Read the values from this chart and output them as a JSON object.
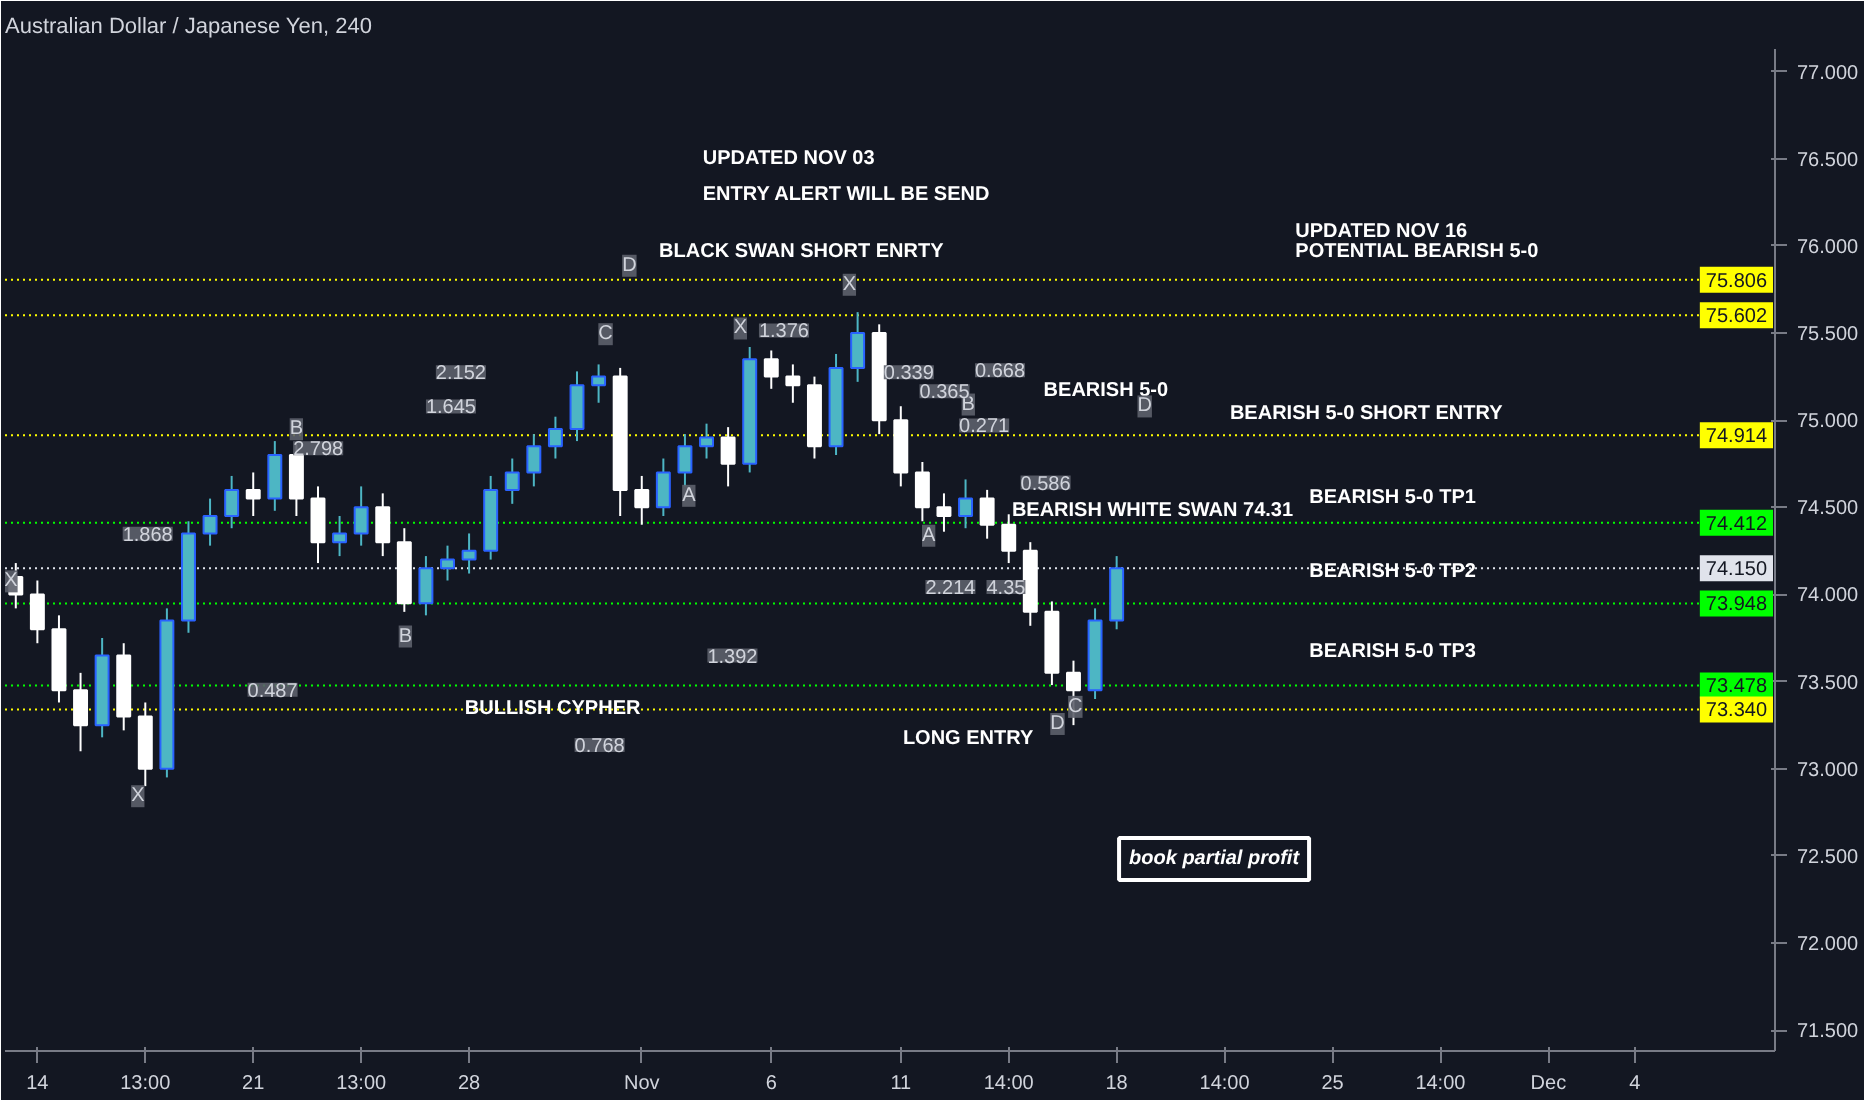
{
  "chart_data": {
    "type": "candlestick",
    "title": "Australian Dollar / Japanese Yen, 240",
    "categories": [
      null,
      "14",
      null,
      null,
      null,
      null,
      "13:00",
      null,
      null,
      null,
      null,
      "21",
      null,
      null,
      null,
      null,
      "13:00",
      null,
      null,
      null,
      null,
      "28",
      null,
      null,
      null,
      null,
      null,
      null,
      null,
      "Nov",
      null,
      null,
      null,
      null,
      null,
      "6",
      null,
      null,
      null,
      null,
      null,
      "11",
      null,
      null,
      null,
      null,
      "14:00",
      null,
      null,
      null,
      null,
      "18",
      null,
      null,
      null,
      null,
      "14:00",
      null,
      null,
      null,
      null,
      "25",
      null,
      null,
      null,
      null,
      "14:00",
      null,
      null,
      null,
      null,
      "Dec",
      null,
      null,
      null,
      "4",
      null,
      null,
      null,
      null,
      null
    ],
    "ohlc": [
      [
        74.1,
        74.18,
        73.92,
        74.0
      ],
      [
        74.0,
        74.08,
        73.72,
        73.8
      ],
      [
        73.8,
        73.88,
        73.38,
        73.45
      ],
      [
        73.45,
        73.55,
        73.1,
        73.25
      ],
      [
        73.25,
        73.75,
        73.18,
        73.65
      ],
      [
        73.65,
        73.72,
        73.22,
        73.3
      ],
      [
        73.3,
        73.38,
        72.9,
        73.0
      ],
      [
        73.0,
        73.92,
        72.95,
        73.85
      ],
      [
        73.85,
        74.42,
        73.78,
        74.35
      ],
      [
        74.35,
        74.55,
        74.28,
        74.45
      ],
      [
        74.45,
        74.68,
        74.38,
        74.6
      ],
      [
        74.6,
        74.7,
        74.45,
        74.55
      ],
      [
        74.55,
        74.88,
        74.48,
        74.8
      ],
      [
        74.8,
        74.86,
        74.45,
        74.55
      ],
      [
        74.55,
        74.62,
        74.18,
        74.3
      ],
      [
        74.3,
        74.45,
        74.22,
        74.35
      ],
      [
        74.35,
        74.62,
        74.28,
        74.5
      ],
      [
        74.5,
        74.58,
        74.22,
        74.3
      ],
      [
        74.3,
        74.38,
        73.9,
        73.95
      ],
      [
        73.95,
        74.22,
        73.88,
        74.15
      ],
      [
        74.15,
        74.28,
        74.08,
        74.2
      ],
      [
        74.2,
        74.35,
        74.12,
        74.25
      ],
      [
        74.25,
        74.68,
        74.2,
        74.6
      ],
      [
        74.6,
        74.78,
        74.52,
        74.7
      ],
      [
        74.7,
        74.92,
        74.62,
        74.85
      ],
      [
        74.85,
        75.02,
        74.78,
        74.95
      ],
      [
        74.95,
        75.28,
        74.88,
        75.2
      ],
      [
        75.2,
        75.32,
        75.1,
        75.25
      ],
      [
        75.25,
        75.3,
        74.45,
        74.6
      ],
      [
        74.6,
        74.68,
        74.4,
        74.5
      ],
      [
        74.5,
        74.78,
        74.45,
        74.7
      ],
      [
        74.7,
        74.92,
        74.62,
        74.85
      ],
      [
        74.85,
        74.98,
        74.78,
        74.9
      ],
      [
        74.9,
        74.96,
        74.62,
        74.75
      ],
      [
        74.75,
        75.42,
        74.7,
        75.35
      ],
      [
        75.35,
        75.4,
        75.18,
        75.25
      ],
      [
        75.25,
        75.32,
        75.1,
        75.2
      ],
      [
        75.2,
        75.25,
        74.78,
        74.85
      ],
      [
        74.85,
        75.38,
        74.8,
        75.3
      ],
      [
        75.3,
        75.62,
        75.22,
        75.5
      ],
      [
        75.5,
        75.55,
        74.92,
        75.0
      ],
      [
        75.0,
        75.08,
        74.62,
        74.7
      ],
      [
        74.7,
        74.76,
        74.42,
        74.5
      ],
      [
        74.5,
        74.58,
        74.36,
        74.45
      ],
      [
        74.45,
        74.66,
        74.38,
        74.55
      ],
      [
        74.55,
        74.6,
        74.32,
        74.4
      ],
      [
        74.4,
        74.46,
        74.18,
        74.25
      ],
      [
        74.25,
        74.3,
        73.82,
        73.9
      ],
      [
        73.9,
        73.96,
        73.48,
        73.55
      ],
      [
        73.55,
        73.62,
        73.25,
        73.45
      ],
      [
        73.45,
        73.92,
        73.4,
        73.85
      ],
      [
        73.85,
        74.22,
        73.8,
        74.15
      ],
      null,
      null,
      null,
      null,
      null,
      null,
      null,
      null,
      null,
      null,
      null,
      null,
      null,
      null,
      null,
      null,
      null,
      null,
      null,
      null,
      null,
      null,
      null,
      null,
      null,
      null,
      null,
      null,
      null
    ],
    "colors": [
      "#ffffff",
      "#ffffff",
      "#ffffff",
      "#ffffff",
      "#4db6c4",
      "#ffffff",
      "#ffffff",
      "#4db6c4",
      "#4db6c4",
      "#4db6c4",
      "#4db6c4",
      "#ffffff",
      "#4db6c4",
      "#ffffff",
      "#ffffff",
      "#4db6c4",
      "#4db6c4",
      "#ffffff",
      "#ffffff",
      "#4db6c4",
      "#4db6c4",
      "#4db6c4",
      "#4db6c4",
      "#4db6c4",
      "#4db6c4",
      "#4db6c4",
      "#4db6c4",
      "#4db6c4",
      "#ffffff",
      "#ffffff",
      "#4db6c4",
      "#4db6c4",
      "#4db6c4",
      "#ffffff",
      "#4db6c4",
      "#ffffff",
      "#ffffff",
      "#ffffff",
      "#4db6c4",
      "#4db6c4",
      "#ffffff",
      "#ffffff",
      "#ffffff",
      "#ffffff",
      "#4db6c4",
      "#ffffff",
      "#ffffff",
      "#ffffff",
      "#ffffff",
      "#ffffff",
      "#4db6c4",
      "#4db6c4",
      null,
      null,
      null,
      null,
      null,
      null,
      null,
      null,
      null,
      null,
      null,
      null,
      null,
      null,
      null,
      null,
      null,
      null,
      null,
      null,
      null,
      null,
      null,
      null,
      null,
      null,
      null,
      null,
      null
    ],
    "ylim": [
      71.38,
      77.13
    ],
    "yticks": [
      {
        "value": 71.5,
        "label": "71.500"
      },
      {
        "value": 72,
        "label": "72.000"
      },
      {
        "value": 72.5,
        "label": "72.500"
      },
      {
        "value": 73,
        "label": "73.000"
      },
      {
        "value": 73.5,
        "label": "73.500"
      },
      {
        "value": 74,
        "label": "74.000"
      },
      {
        "value": 74.5,
        "label": "74.500"
      },
      {
        "value": 75,
        "label": "75.000"
      },
      {
        "value": 75.5,
        "label": "75.500"
      },
      {
        "value": 76,
        "label": "76.000"
      },
      {
        "value": 76.5,
        "label": "76.500"
      },
      {
        "value": 77,
        "label": "77.000"
      }
    ],
    "ref_lines": [
      {
        "axis": "y",
        "value": 75.806,
        "label": "75.806",
        "color": "#ffff00",
        "line_style": "dotted"
      },
      {
        "axis": "y",
        "value": 75.602,
        "label": "75.602",
        "color": "#ffff00",
        "line_style": "dotted"
      },
      {
        "axis": "y",
        "value": 74.914,
        "label": "74.914",
        "color": "#ffff00",
        "line_style": "dotted"
      },
      {
        "axis": "y",
        "value": 74.412,
        "label": "74.412",
        "color": "#00ff00",
        "line_style": "dotted"
      },
      {
        "axis": "y",
        "value": 74.15,
        "label": "74.150",
        "color": "#e0e3eb",
        "line_style": "dotted"
      },
      {
        "axis": "y",
        "value": 73.948,
        "label": "73.948",
        "color": "#00ff00",
        "line_style": "dotted"
      },
      {
        "axis": "y",
        "value": 73.478,
        "label": "73.478",
        "color": "#00ff00",
        "line_style": "dotted"
      },
      {
        "axis": "y",
        "value": 73.34,
        "label": "73.340",
        "color": "#ffff00",
        "line_style": "dotted"
      }
    ],
    "annotations": [
      "UPDATED NOV 03",
      "ENTRY ALERT WILL BE SEND",
      "BLACK SWAN SHORT ENRTY",
      "UPDATED NOV 16",
      "POTENTIAL BEARISH 5-0",
      "BEARISH 5-0",
      "BEARISH 5-0 SHORT ENTRY",
      "BEARISH WHITE SWAN 74.31",
      "BEARISH 5-0 TP1",
      "BEARISH 5-0 TP2",
      "BEARISH 5-0 TP3",
      "BULLISH CYPHER",
      "LONG ENTRY",
      "book partial profit",
      "X",
      "B",
      "B",
      "C",
      "D",
      "X",
      "X",
      "A",
      "X",
      "A",
      "B",
      "D",
      "C",
      "D",
      "1.868",
      "2.798",
      "2.152",
      "1.645",
      "0.487",
      "0.768",
      "1.392",
      "1.376",
      "0.339",
      "0.365",
      "0.271",
      "0.668",
      "0.586",
      "2.214",
      "4.35"
    ]
  }
}
